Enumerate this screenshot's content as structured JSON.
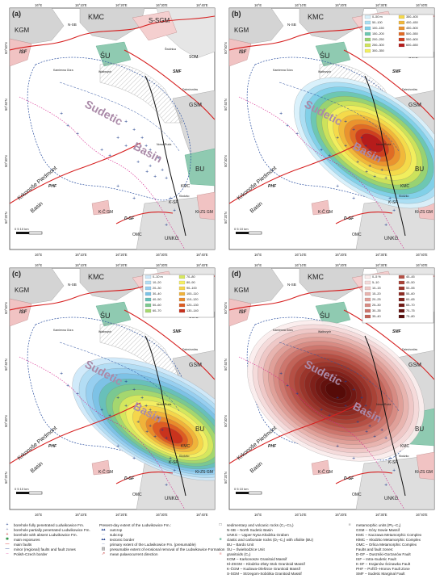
{
  "panels": [
    {
      "id": "a",
      "label": "(a)",
      "legend_title": "",
      "legend_items": []
    },
    {
      "id": "b",
      "label": "(b)",
      "legend_title": "",
      "legend_items": [
        {
          "label": "0–50 m",
          "color": "#d9f1fb"
        },
        {
          "label": "50–100",
          "color": "#a9def3"
        },
        {
          "label": "100–150",
          "color": "#7fd0e8"
        },
        {
          "label": "150–200",
          "color": "#6cc7b0"
        },
        {
          "label": "200–250",
          "color": "#9bd36f"
        },
        {
          "label": "250–300",
          "color": "#cfe35a"
        },
        {
          "label": "300–350",
          "color": "#f3ef5e"
        },
        {
          "label": "350–400",
          "color": "#f6d94a"
        },
        {
          "label": "400–450",
          "color": "#f1b73a"
        },
        {
          "label": "450–500",
          "color": "#ea922e"
        },
        {
          "label": "500–550",
          "color": "#e06a24"
        },
        {
          "label": "550–600",
          "color": "#cf3d1e"
        },
        {
          "label": "600–650",
          "color": "#b51b1b"
        }
      ]
    },
    {
      "id": "c",
      "label": "(c)",
      "legend_title": "",
      "legend_items": [
        {
          "label": "0–10 m",
          "color": "#cfe9fa"
        },
        {
          "label": "10–20",
          "color": "#b2ddf4"
        },
        {
          "label": "20–30",
          "color": "#96cff0"
        },
        {
          "label": "30–40",
          "color": "#7cc2e6"
        },
        {
          "label": "40–50",
          "color": "#67c0b8"
        },
        {
          "label": "50–60",
          "color": "#7bc98f"
        },
        {
          "label": "60–70",
          "color": "#a7d86e"
        },
        {
          "label": "70–80",
          "color": "#d7e85e"
        },
        {
          "label": "80–90",
          "color": "#f5ef63"
        },
        {
          "label": "90–100",
          "color": "#f6d54a"
        },
        {
          "label": "100–110",
          "color": "#f0b23a"
        },
        {
          "label": "110–120",
          "color": "#e9892b"
        },
        {
          "label": "120–130",
          "color": "#dd5b22"
        },
        {
          "label": "130–140",
          "color": "#c8311d"
        }
      ]
    },
    {
      "id": "d",
      "label": "(d)",
      "legend_title": "",
      "legend_items": [
        {
          "label": "0–5 %",
          "color": "#fbeeee"
        },
        {
          "label": "5–10",
          "color": "#f5dada"
        },
        {
          "label": "10–15",
          "color": "#efc8c6"
        },
        {
          "label": "15–20",
          "color": "#e8b3ae"
        },
        {
          "label": "20–25",
          "color": "#e09f98"
        },
        {
          "label": "25–30",
          "color": "#d78a82"
        },
        {
          "label": "30–35",
          "color": "#cd756c"
        },
        {
          "label": "35–40",
          "color": "#c26257"
        },
        {
          "label": "40–45",
          "color": "#b65045"
        },
        {
          "label": "45–50",
          "color": "#a94236"
        },
        {
          "label": "50–55",
          "color": "#9b352b"
        },
        {
          "label": "55–60",
          "color": "#8d2a22"
        },
        {
          "label": "60–65",
          "color": "#7f201a"
        },
        {
          "label": "65–70",
          "color": "#711813"
        },
        {
          "label": "70–75",
          "color": "#63110d"
        },
        {
          "label": "75–80",
          "color": "#560b08"
        }
      ]
    }
  ],
  "map_labels": {
    "kmc": "KMC",
    "kgm": "KGM",
    "ssgm": "S-SGM",
    "su": "ŚU",
    "nsb": "N-SB",
    "isf": "ISF",
    "smf": "SMF",
    "gsm": "GSM",
    "som": "SOM",
    "bu": "BU",
    "kmc2": "KMC",
    "ksf": "K-SF",
    "phf": "PHF",
    "dgf": "D-GF",
    "kcgm": "K-Č GM",
    "omc": "OMC",
    "unkg": "UNKG",
    "klzsgm": "Kł-ZS GM",
    "sudetic": "Sudetic",
    "basin": "Basin",
    "kpb1": "Krkonoše Piedmont",
    "kpb2": "Basin",
    "walbrzych": "Wałbrzych",
    "kamienna": "Kamienna Góra",
    "dzierzoniow": "Dzierżoniów",
    "nowa_ruda": "Nowa Ruda",
    "klodzko": "Kłodzko",
    "swidnica": "Świdnica",
    "scale": "0      5      10 km"
  },
  "axes": {
    "top_ticks": [
      "16°E",
      "16°10'E",
      "16°20'E",
      "16°30'E",
      "16°40'E"
    ],
    "bottom_ticks": [
      "16°E",
      "16°10'E",
      "16°20'E",
      "16°30'E",
      "16°40'E"
    ],
    "left_ticks": [
      "50°50'N",
      "50°40'N",
      "50°30'N",
      "50°20'N"
    ]
  },
  "legend": {
    "col1": [
      {
        "sym": "+",
        "color": "#1f3e8c",
        "text": "borehole fully penetrated Ludwikowice Fm."
      },
      {
        "sym": "+",
        "color": "#7a83b5",
        "text": "borehole partially penetrated Ludwikowice Fm."
      },
      {
        "sym": "+",
        "color": "#c22525",
        "text": "borehole with absent Ludwikowice Fm."
      },
      {
        "sym": "✱",
        "color": "#1f8c3a",
        "text": "main exposures"
      },
      {
        "sym": "—",
        "color": "#d62020",
        "text": "main faults"
      },
      {
        "sym": "—",
        "color": "#1f3e8c",
        "text": "minor (regional) faults and fault zones"
      },
      {
        "sym": "┄",
        "color": "#d61f8a",
        "text": "Polish-Czech border"
      }
    ],
    "col2_title": "Present-day extent of the Ludwikowice Fm.:",
    "col2": [
      {
        "sym": "▴▴",
        "color": "#1f3e8c",
        "text": "outcrop"
      },
      {
        "sym": "┈",
        "color": "#1f3e8c",
        "text": "subcrop"
      },
      {
        "sym": "▴▴",
        "color": "#1f3e8c",
        "text": "tectonic border"
      },
      {
        "sym": "┈",
        "color": "#1f3e8c",
        "text": "primary extent of the Ludwikowice Fm. (presumable)"
      },
      {
        "sym": "▨",
        "color": "#666",
        "text": "presumable extent of erosional removal of the Ludwikowice Formation"
      },
      {
        "sym": "↗",
        "color": "#c22525",
        "text": "mean palaeocurrent direction"
      }
    ],
    "col3": [
      {
        "sym": "□",
        "color": "#555",
        "text": "sedimentary and volcanic rocks (C₁–Cr₂)"
      },
      {
        "sym": "",
        "color": "#555",
        "text": "N-SB – North Sudetic Basin"
      },
      {
        "sym": "",
        "color": "#555",
        "text": "UNKG – Upper Nysa Kłodzka Graben"
      },
      {
        "sym": "■",
        "color": "#7fc3a9",
        "text": "clastic and carbonate rocks (D₁–C₁) with ofiolite (BU)"
      },
      {
        "sym": "",
        "color": "#555",
        "text": "BU – Bardo Unit"
      },
      {
        "sym": "",
        "color": "#555",
        "text": "ŚU – Świebodzice Unit"
      },
      {
        "sym": "■",
        "color": "#f3c2c2",
        "text": "granitoids (C₂)"
      },
      {
        "sym": "",
        "color": "#555",
        "text": "KGM – Karkonosze Granitoid Massif"
      },
      {
        "sym": "",
        "color": "#555",
        "text": "Kł-ZSGM – Kłodzko-Złoty Stok Granitoid Massif"
      },
      {
        "sym": "",
        "color": "#555",
        "text": "K-ČGM – Kudowa-Olešnice Granitoid Massif"
      },
      {
        "sym": "",
        "color": "#555",
        "text": "S-SGM – Strzegom-Sobótka Granitoid Massif"
      }
    ],
    "col4": [
      {
        "sym": "■",
        "color": "#c8c8c8",
        "text": "metamorphic units (Pt₂–C₁)"
      },
      {
        "sym": "",
        "color": "#555",
        "text": "GSM – Góry Sowie Massif"
      },
      {
        "sym": "",
        "color": "#555",
        "text": "KMC – Kaczawa Metamorphic Complex"
      },
      {
        "sym": "",
        "color": "#555",
        "text": "KłMC – Kłodzko Metamorphic Complex"
      },
      {
        "sym": "",
        "color": "#555",
        "text": "OMC – Orlica Metamorphic Complex"
      },
      {
        "sym": "",
        "color": "#555",
        "text": "Faults and fault zones:"
      },
      {
        "sym": "",
        "color": "#555",
        "text": "D-GF – Duszniki-Gorzanów Fault"
      },
      {
        "sym": "",
        "color": "#555",
        "text": "ISF – Intra-Sudetic Fault"
      },
      {
        "sym": "",
        "color": "#555",
        "text": "K-SF – Krajanów Ścinawka Fault"
      },
      {
        "sym": "",
        "color": "#555",
        "text": "PHF – Pořičí–Hronov Fault Zone"
      },
      {
        "sym": "",
        "color": "#555",
        "text": "SMF – Sudetic Marginal Fault"
      }
    ]
  }
}
